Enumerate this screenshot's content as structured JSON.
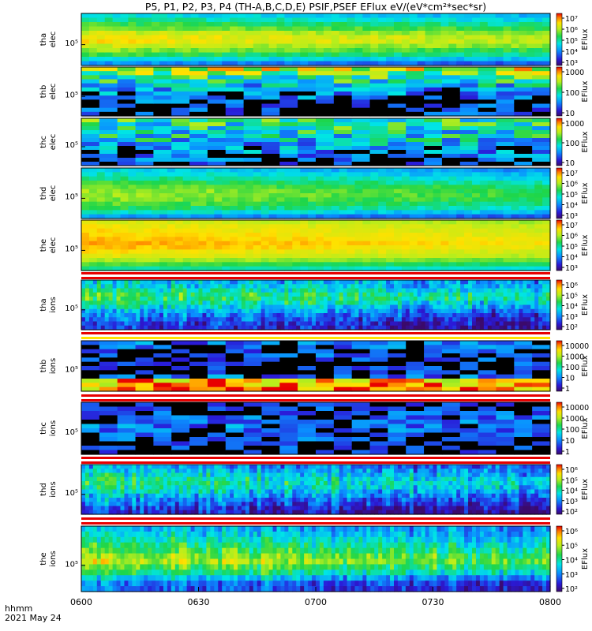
{
  "chart_data": {
    "type": "heatmap",
    "title": "P5, P1, P2, P3, P4 (TH-A,B,C,D,E) PSIF,PSEF EFlux eV/(eV*cm²*sec*sr)",
    "x_axis": {
      "ticks": [
        "0600",
        "0630",
        "0700",
        "0730",
        "0800"
      ],
      "range": [
        "06:00",
        "08:00"
      ],
      "label_line1": "hhmm",
      "label_line2": "2021 May 24"
    },
    "colorbar_label": "EFlux",
    "panels": [
      {
        "probe": "tha",
        "species": "elec",
        "ytick": "10⁵",
        "cb_ticks": [
          "10⁷",
          "10⁶",
          "10⁵",
          "10⁴",
          "10³"
        ],
        "level": [
          0.3,
          0.45,
          0.58,
          0.66,
          0.74,
          0.8,
          0.8,
          0.74,
          0.66,
          0.58,
          0.5,
          0.43
        ],
        "trend": -0.1,
        "noise": 0.05,
        "mode": "smooth"
      },
      {
        "probe": "thb",
        "species": "elec",
        "ytick": "10⁵",
        "cb_ticks": [
          "1000",
          "100",
          "10"
        ],
        "level": [
          0.08,
          0.1,
          0.12,
          0.14,
          0.18,
          0.22,
          0.28,
          0.36,
          0.46,
          0.52,
          0.62,
          0.72
        ],
        "trend": 0.0,
        "noise": 0.22,
        "mode": "blocky"
      },
      {
        "probe": "thc",
        "species": "elec",
        "ytick": "10⁵",
        "cb_ticks": [
          "1000",
          "100",
          "10"
        ],
        "level": [
          0.1,
          0.14,
          0.18,
          0.22,
          0.26,
          0.32,
          0.38,
          0.42,
          0.44,
          0.46,
          0.48,
          0.5
        ],
        "trend": 0.0,
        "noise": 0.22,
        "mode": "blocky"
      },
      {
        "probe": "thd",
        "species": "elec",
        "ytick": "10⁵",
        "cb_ticks": [
          "10⁷",
          "10⁶",
          "10⁵",
          "10⁴",
          "10³"
        ],
        "level": [
          0.32,
          0.46,
          0.56,
          0.62,
          0.66,
          0.68,
          0.68,
          0.64,
          0.58,
          0.52,
          0.46,
          0.4
        ],
        "trend": -0.12,
        "noise": 0.05,
        "mode": "smooth"
      },
      {
        "probe": "the",
        "species": "elec",
        "ytick": "10⁵",
        "cb_ticks": [
          "10⁷",
          "10⁶",
          "10⁵",
          "10⁴",
          "10³"
        ],
        "level": [
          0.5,
          0.6,
          0.7,
          0.78,
          0.82,
          0.86,
          0.88,
          0.86,
          0.84,
          0.82,
          0.8,
          0.76
        ],
        "trend": -0.08,
        "noise": 0.03,
        "mode": "smooth"
      },
      {
        "probe": "tha",
        "species": "ions",
        "ytick": "10⁵",
        "cb_ticks": [
          "10⁶",
          "10⁵",
          "10⁴",
          "10³",
          "10²"
        ],
        "level": [
          0.18,
          0.2,
          0.24,
          0.3,
          0.36,
          0.44,
          0.52,
          0.58,
          0.56,
          0.5,
          0.44,
          0.4
        ],
        "trend": -0.14,
        "noise": 0.1,
        "mode": "striated"
      },
      {
        "probe": "thb",
        "species": "ions",
        "ytick": "10⁵",
        "cb_ticks": [
          "10000",
          "1000",
          "100",
          "10",
          "1"
        ],
        "level": [
          0.88,
          0.86,
          0.84,
          0.2,
          0.12,
          0.1,
          0.1,
          0.12,
          0.14,
          0.16,
          0.18,
          0.2
        ],
        "trend": 0.0,
        "noise": 0.18,
        "mode": "blocky"
      },
      {
        "probe": "thc",
        "species": "ions",
        "ytick": "10⁵",
        "cb_ticks": [
          "10000",
          "1000",
          "100",
          "10",
          "1"
        ],
        "level": [
          0.1,
          0.12,
          0.14,
          0.16,
          0.18,
          0.2,
          0.22,
          0.22,
          0.2,
          0.16,
          0.12,
          0.08
        ],
        "trend": 0.0,
        "noise": 0.16,
        "mode": "blocky"
      },
      {
        "probe": "thd",
        "species": "ions",
        "ytick": "10⁵",
        "cb_ticks": [
          "10⁶",
          "10⁵",
          "10⁴",
          "10³",
          "10²"
        ],
        "level": [
          0.16,
          0.2,
          0.26,
          0.32,
          0.38,
          0.44,
          0.5,
          0.54,
          0.52,
          0.46,
          0.4,
          0.34
        ],
        "trend": -0.16,
        "noise": 0.1,
        "mode": "striated"
      },
      {
        "probe": "the",
        "species": "ions",
        "ytick": "10⁵",
        "cb_ticks": [
          "10⁶",
          "10⁵",
          "10⁴",
          "10³",
          "10²"
        ],
        "level": [
          0.24,
          0.28,
          0.4,
          0.56,
          0.64,
          0.74,
          0.7,
          0.62,
          0.56,
          0.5,
          0.44,
          0.38
        ],
        "trend": -0.14,
        "noise": 0.08,
        "mode": "striated"
      }
    ]
  }
}
